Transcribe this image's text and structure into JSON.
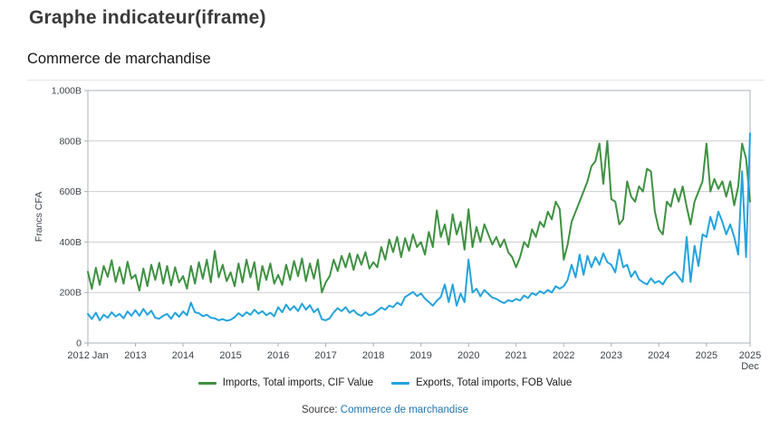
{
  "page": {
    "title": "Graphe indicateur(iframe)"
  },
  "panel": {
    "title": "Commerce de marchandise"
  },
  "source": {
    "label": "Source:",
    "link_text": "Commerce de marchandise"
  },
  "chart_data": {
    "type": "line",
    "title": "Commerce de marchandise",
    "xlabel": "",
    "ylabel": "Francs CFA",
    "unit": "billions of Francs CFA",
    "ylim": [
      0,
      1000
    ],
    "grid": true,
    "legend_position": "bottom",
    "y_ticks": [
      {
        "value": 0,
        "label": "0"
      },
      {
        "value": 200,
        "label": "200B"
      },
      {
        "value": 400,
        "label": "400B"
      },
      {
        "value": 600,
        "label": "600B"
      },
      {
        "value": 800,
        "label": "800B"
      },
      {
        "value": 1000,
        "label": "1,000B"
      }
    ],
    "x_range": {
      "start": "2012-01",
      "end": "2025-12",
      "frequency": "monthly",
      "points": 168
    },
    "x_ticks": [
      {
        "month": 0,
        "label": "2012 Jan"
      },
      {
        "month": 12,
        "label": "2013"
      },
      {
        "month": 24,
        "label": "2014"
      },
      {
        "month": 36,
        "label": "2015"
      },
      {
        "month": 48,
        "label": "2016"
      },
      {
        "month": 60,
        "label": "2017"
      },
      {
        "month": 72,
        "label": "2018"
      },
      {
        "month": 84,
        "label": "2019"
      },
      {
        "month": 96,
        "label": "2020"
      },
      {
        "month": 108,
        "label": "2021"
      },
      {
        "month": 120,
        "label": "2022"
      },
      {
        "month": 132,
        "label": "2023"
      },
      {
        "month": 144,
        "label": "2024"
      },
      {
        "month": 156,
        "label": "2025"
      },
      {
        "month": 167,
        "label": "2025",
        "sublabel": "Dec"
      }
    ],
    "series": [
      {
        "name": "Imports, Total imports, CIF Value",
        "color": "#3f9142",
        "values": [
          282,
          215,
          298,
          230,
          305,
          262,
          328,
          242,
          300,
          235,
          322,
          255,
          270,
          208,
          295,
          225,
          310,
          250,
          318,
          235,
          305,
          228,
          300,
          240,
          265,
          215,
          305,
          235,
          320,
          255,
          330,
          240,
          365,
          260,
          310,
          245,
          280,
          225,
          315,
          240,
          330,
          260,
          320,
          210,
          305,
          250,
          315,
          235,
          270,
          230,
          310,
          250,
          325,
          265,
          335,
          245,
          315,
          255,
          330,
          200,
          240,
          265,
          330,
          285,
          345,
          300,
          355,
          290,
          350,
          310,
          360,
          295,
          320,
          300,
          380,
          330,
          410,
          360,
          420,
          340,
          415,
          365,
          430,
          380,
          400,
          350,
          440,
          380,
          525,
          420,
          470,
          390,
          510,
          430,
          480,
          370,
          530,
          380,
          460,
          400,
          470,
          430,
          390,
          420,
          380,
          410,
          360,
          340,
          300,
          340,
          400,
          380,
          450,
          420,
          480,
          460,
          520,
          490,
          560,
          530,
          330,
          390,
          480,
          520,
          560,
          600,
          640,
          700,
          720,
          790,
          630,
          800,
          570,
          560,
          470,
          490,
          640,
          580,
          560,
          620,
          600,
          690,
          680,
          520,
          450,
          430,
          560,
          540,
          610,
          560,
          620,
          540,
          470,
          560,
          600,
          640,
          790,
          600,
          650,
          610,
          640,
          580,
          640,
          545,
          620,
          790,
          730,
          560
        ]
      },
      {
        "name": "Exports, Total imports, FOB Value",
        "color": "#24a3dc",
        "values": [
          115,
          95,
          120,
          90,
          112,
          100,
          122,
          105,
          115,
          98,
          125,
          108,
          130,
          108,
          135,
          112,
          128,
          100,
          96,
          108,
          115,
          96,
          120,
          104,
          125,
          110,
          160,
          122,
          118,
          106,
          112,
          100,
          98,
          90,
          95,
          88,
          92,
          102,
          118,
          106,
          122,
          112,
          132,
          116,
          126,
          110,
          120,
          106,
          142,
          122,
          152,
          130,
          146,
          126,
          156,
          132,
          150,
          122,
          136,
          94,
          90,
          98,
          122,
          138,
          126,
          142,
          120,
          130,
          114,
          108,
          122,
          110,
          115,
          128,
          140,
          132,
          148,
          142,
          160,
          150,
          182,
          192,
          202,
          186,
          196,
          176,
          162,
          148,
          168,
          182,
          232,
          162,
          232,
          148,
          196,
          162,
          330,
          200,
          215,
          185,
          210,
          195,
          180,
          175,
          165,
          158,
          170,
          165,
          175,
          168,
          188,
          178,
          198,
          190,
          205,
          196,
          210,
          200,
          225,
          215,
          225,
          250,
          310,
          260,
          350,
          270,
          345,
          300,
          340,
          310,
          355,
          320,
          310,
          280,
          370,
          300,
          310,
          262,
          285,
          252,
          240,
          232,
          256,
          238,
          246,
          232,
          258,
          270,
          282,
          262,
          242,
          420,
          242,
          385,
          305,
          430,
          420,
          500,
          450,
          520,
          480,
          430,
          470,
          420,
          350,
          680,
          340,
          830
        ]
      }
    ],
    "style": {
      "grid_color": "#cdcdcd",
      "plot_border_color": "#a9b0bb",
      "tick_label_color": "#3d4349",
      "axis_title_color": "#3e4350"
    }
  }
}
